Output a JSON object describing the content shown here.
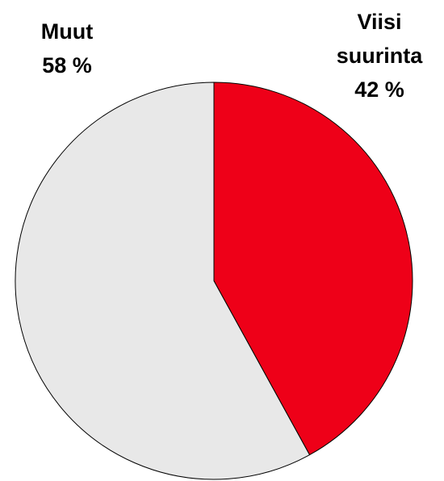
{
  "chart_data": {
    "type": "pie",
    "categories": [
      "Viisi suurinta",
      "Muut"
    ],
    "values": [
      42,
      58
    ],
    "value_labels": [
      "42 %",
      "58 %"
    ],
    "colors": [
      "#ee0018",
      "#e8e8e8"
    ]
  }
}
